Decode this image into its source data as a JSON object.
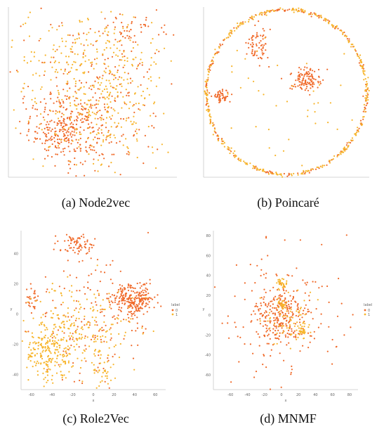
{
  "colors": {
    "label_0": "#f06a2a",
    "label_1": "#f7b52c",
    "axis": "#c9c9c9",
    "tick_text": "#666666"
  },
  "captions": {
    "a": "(a) Node2vec",
    "b": "(b) Poincaré",
    "c": "(c) Role2Vec",
    "d": "(d) MNMF"
  },
  "chart_data": [
    {
      "id": "node2vec",
      "type": "scatter",
      "title": "",
      "xlabel": "",
      "ylabel": "",
      "legend": {
        "title": "",
        "entries": [],
        "placement": "right"
      },
      "xticks": [],
      "yticks": [],
      "xlim": [
        -40,
        40
      ],
      "ylim": [
        -40,
        40
      ],
      "series": [
        {
          "label": "0",
          "clusters": [
            {
              "cx": -12,
              "cy": -18,
              "sx": 9,
              "sy": 7,
              "n": 260
            },
            {
              "cx": 20,
              "cy": 30,
              "sx": 6,
              "sy": 4,
              "n": 40
            },
            {
              "cx": 0,
              "cy": 0,
              "sx": 20,
              "sy": 20,
              "n": 260
            }
          ]
        },
        {
          "label": "1",
          "clusters": [
            {
              "cx": 0,
              "cy": 10,
              "sx": 18,
              "sy": 15,
              "n": 300
            },
            {
              "cx": 5,
              "cy": -15,
              "sx": 15,
              "sy": 12,
              "n": 140
            }
          ]
        }
      ]
    },
    {
      "id": "poincare",
      "type": "scatter",
      "title": "",
      "xlabel": "",
      "ylabel": "",
      "legend": {
        "title": "",
        "entries": [],
        "placement": "right"
      },
      "xticks": [],
      "yticks": [],
      "xlim": [
        -1,
        1
      ],
      "ylim": [
        -1,
        1
      ],
      "boundary": "unit-circle",
      "series": [
        {
          "label": "0",
          "ring": {
            "radius": 0.97,
            "n": 200
          },
          "clusters": [
            {
              "cx": 0.22,
              "cy": 0.15,
              "sx": 0.09,
              "sy": 0.07,
              "n": 120
            },
            {
              "cx": -0.35,
              "cy": 0.55,
              "sx": 0.07,
              "sy": 0.12,
              "n": 70
            },
            {
              "cx": -0.78,
              "cy": -0.05,
              "sx": 0.05,
              "sy": 0.04,
              "n": 50
            }
          ]
        },
        {
          "label": "1",
          "ring": {
            "radius": 0.97,
            "n": 330
          },
          "clusters": [
            {
              "cx": 0.0,
              "cy": 0.0,
              "sx": 0.45,
              "sy": 0.4,
              "n": 45
            }
          ]
        }
      ]
    },
    {
      "id": "role2vec",
      "type": "scatter",
      "title": "",
      "xlabel": "x",
      "ylabel": "y",
      "legend": {
        "title": "label",
        "entries": [
          "0",
          "1"
        ],
        "placement": "right"
      },
      "xticks": [
        -60,
        -40,
        -20,
        0,
        20,
        40,
        60
      ],
      "yticks": [
        -40,
        -20,
        0,
        20,
        40
      ],
      "xlim": [
        -70,
        70
      ],
      "ylim": [
        -50,
        55
      ],
      "series": [
        {
          "label": "0",
          "clusters": [
            {
              "cx": 40,
              "cy": 10,
              "sx": 10,
              "sy": 5,
              "n": 230
            },
            {
              "cx": -15,
              "cy": 46,
              "sx": 8,
              "sy": 4,
              "n": 70
            },
            {
              "cx": 0,
              "cy": 0,
              "sx": 30,
              "sy": 22,
              "n": 180
            },
            {
              "cx": -60,
              "cy": 10,
              "sx": 3,
              "sy": 3,
              "n": 25
            }
          ]
        },
        {
          "label": "1",
          "clusters": [
            {
              "cx": -45,
              "cy": -25,
              "sx": 12,
              "sy": 10,
              "n": 220
            },
            {
              "cx": -10,
              "cy": -10,
              "sx": 25,
              "sy": 15,
              "n": 200
            },
            {
              "cx": 10,
              "cy": -38,
              "sx": 5,
              "sy": 5,
              "n": 30
            }
          ]
        }
      ]
    },
    {
      "id": "mnmf",
      "type": "scatter",
      "title": "",
      "xlabel": "x",
      "ylabel": "y",
      "legend": {
        "title": "label",
        "entries": [
          "0",
          "1"
        ],
        "placement": "right"
      },
      "xticks": [
        -60,
        -40,
        -20,
        0,
        20,
        40,
        60,
        80
      ],
      "yticks": [
        -60,
        -40,
        -20,
        0,
        20,
        40,
        60,
        80
      ],
      "xlim": [
        -80,
        90
      ],
      "ylim": [
        -75,
        85
      ],
      "series": [
        {
          "label": "0",
          "clusters": [
            {
              "cx": 0,
              "cy": 0,
              "sx": 15,
              "sy": 15,
              "n": 230
            },
            {
              "cx": 0,
              "cy": 0,
              "sx": 42,
              "sy": 38,
              "n": 140
            }
          ]
        },
        {
          "label": "1",
          "clusters": [
            {
              "cx": 0,
              "cy": 32,
              "sx": 3,
              "sy": 3,
              "n": 30
            },
            {
              "cx": 0,
              "cy": 10,
              "sx": 3,
              "sy": 3,
              "n": 25
            },
            {
              "cx": 25,
              "cy": -15,
              "sx": 4,
              "sy": 4,
              "n": 40
            },
            {
              "cx": 5,
              "cy": -5,
              "sx": 15,
              "sy": 15,
              "n": 60
            }
          ]
        }
      ]
    }
  ]
}
